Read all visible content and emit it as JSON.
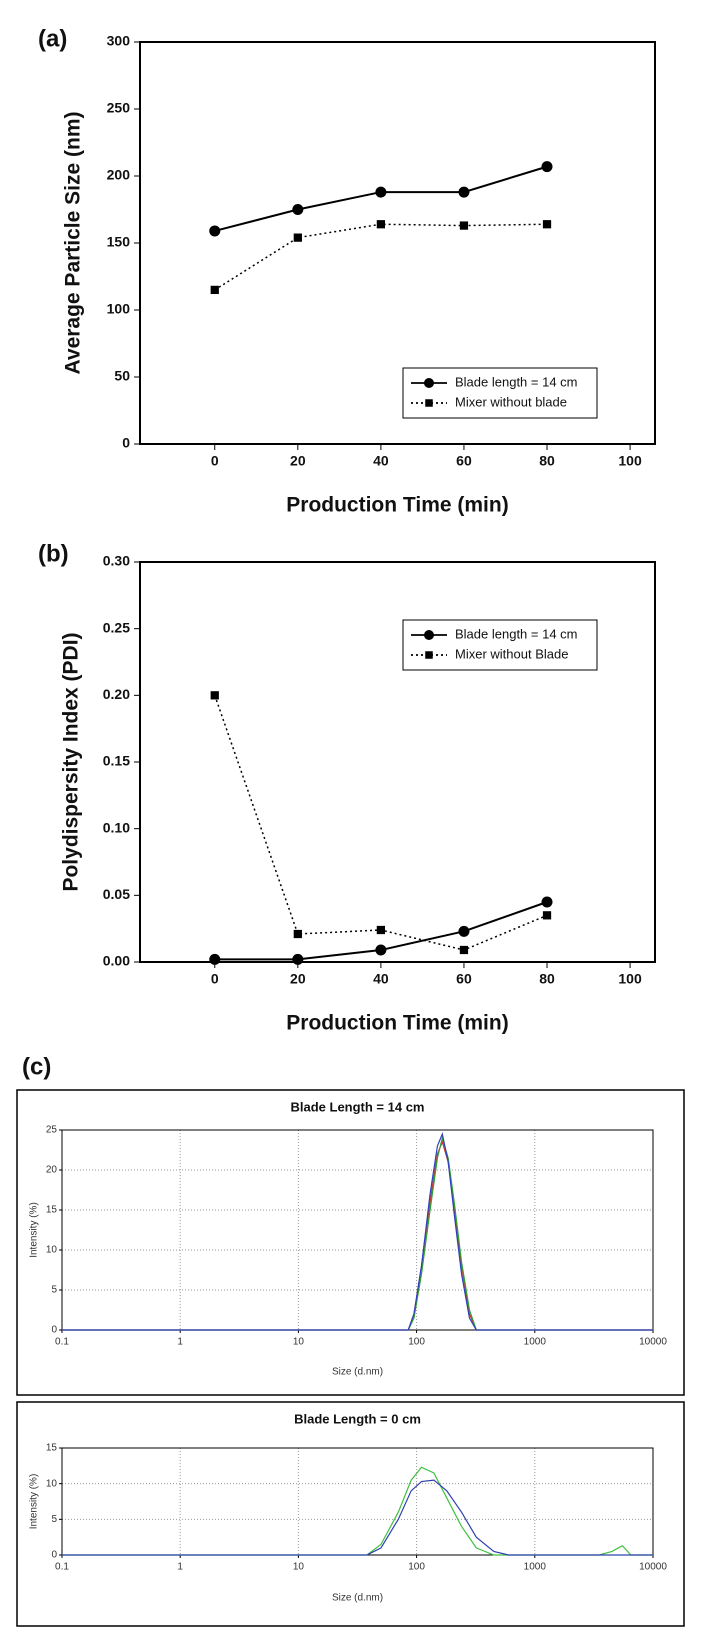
{
  "chart_data": [
    {
      "type": "line",
      "panel_label": "(a)",
      "xlabel": "Production Time (min)",
      "ylabel": "Average Particle Size (nm)",
      "x": [
        0,
        20,
        40,
        60,
        80
      ],
      "xlim": [
        -18,
        106
      ],
      "ylim": [
        0,
        300
      ],
      "xticks": [
        0,
        20,
        40,
        60,
        80,
        100
      ],
      "yticks": [
        0,
        50,
        100,
        150,
        200,
        250,
        300
      ],
      "grid": false,
      "legend": "lower right",
      "series": [
        {
          "name": "Blade length = 14 cm",
          "color": "#000000",
          "marker": "circle",
          "linestyle": "solid",
          "values": [
            159,
            175,
            188,
            188,
            207
          ]
        },
        {
          "name": "Mixer without blade",
          "color": "#000000",
          "marker": "square",
          "linestyle": "dotted",
          "values": [
            115,
            154,
            164,
            163,
            164
          ]
        }
      ]
    },
    {
      "type": "line",
      "panel_label": "(b)",
      "xlabel": "Production Time (min)",
      "ylabel": "Polydispersity Index (PDI)",
      "x": [
        0,
        20,
        40,
        60,
        80
      ],
      "xlim": [
        -18,
        106
      ],
      "ylim": [
        0,
        0.3
      ],
      "xticks": [
        0,
        20,
        40,
        60,
        80,
        100
      ],
      "yticks": [
        {
          "value": 0,
          "label": "0.00"
        },
        {
          "value": 0.05,
          "label": "0.05"
        },
        {
          "value": 0.1,
          "label": "0.10"
        },
        {
          "value": 0.15,
          "label": "0.15"
        },
        {
          "value": 0.2,
          "label": "0.20"
        },
        {
          "value": 0.25,
          "label": "0.25"
        },
        {
          "value": 0.3,
          "label": "0.30"
        }
      ],
      "grid": false,
      "legend": "upper right",
      "series": [
        {
          "name": "Blade length = 14 cm",
          "color": "#000000",
          "marker": "circle",
          "linestyle": "solid",
          "values": [
            0.002,
            0.002,
            0.009,
            0.023,
            0.045
          ]
        },
        {
          "name": "Mixer without Blade",
          "color": "#000000",
          "marker": "square",
          "linestyle": "dotted",
          "values": [
            0.2,
            0.021,
            0.024,
            0.009,
            0.035
          ]
        }
      ]
    },
    {
      "type": "line",
      "panel_label": "(c)",
      "title": "Blade Length = 14 cm",
      "xlabel": "Size (d.nm)",
      "ylabel": "Intensity (%)",
      "xscale": "log",
      "xlim": [
        0.1,
        10000
      ],
      "ylim": [
        0,
        25
      ],
      "xticks": [
        0.1,
        1,
        10,
        100,
        1000,
        10000
      ],
      "yticks": [
        0,
        5,
        10,
        15,
        20,
        25
      ],
      "grid": true,
      "series": [
        {
          "color": "#d03030",
          "x": [
            0.1,
            85,
            95,
            110,
            130,
            150,
            165,
            185,
            210,
            240,
            280,
            320,
            10000
          ],
          "values": [
            0,
            0,
            2,
            8,
            16,
            22,
            23.5,
            21,
            15,
            8,
            2,
            0,
            0
          ]
        },
        {
          "color": "#30a030",
          "x": [
            0.1,
            85,
            95,
            110,
            130,
            150,
            165,
            185,
            210,
            240,
            280,
            320,
            10000
          ],
          "values": [
            0,
            0,
            1.5,
            7,
            15,
            21.5,
            24,
            21.5,
            15.5,
            8.5,
            2.5,
            0,
            0
          ]
        },
        {
          "color": "#3040c0",
          "x": [
            0.1,
            85,
            95,
            110,
            130,
            150,
            165,
            185,
            210,
            240,
            280,
            320,
            10000
          ],
          "values": [
            0,
            0,
            2,
            8,
            17,
            23,
            24.5,
            21,
            14,
            7,
            1.5,
            0,
            0
          ]
        }
      ]
    },
    {
      "type": "line",
      "title": "Blade Length = 0 cm",
      "xlabel": "Size (d.nm)",
      "ylabel": "Intensity (%)",
      "xscale": "log",
      "xlim": [
        0.1,
        10000
      ],
      "ylim": [
        0,
        15
      ],
      "xticks": [
        0.1,
        1,
        10,
        100,
        1000,
        10000
      ],
      "yticks": [
        0,
        5,
        10,
        15
      ],
      "grid": true,
      "series": [
        {
          "color": "#40c040",
          "x": [
            0.1,
            38,
            50,
            70,
            90,
            110,
            140,
            180,
            240,
            320,
            450,
            600,
            3500,
            4500,
            5500,
            6500,
            10000
          ],
          "values": [
            0,
            0,
            1.5,
            6,
            10.5,
            12.3,
            11.5,
            8,
            4,
            1,
            0,
            0,
            0,
            0.5,
            1.3,
            0,
            0
          ]
        },
        {
          "color": "#3040b0",
          "x": [
            0.1,
            38,
            50,
            70,
            90,
            110,
            140,
            180,
            240,
            320,
            450,
            600,
            3500,
            4500,
            5500,
            6500,
            10000
          ],
          "values": [
            0,
            0,
            1,
            5,
            9,
            10.3,
            10.5,
            9,
            6,
            2.5,
            0.5,
            0,
            0,
            0,
            0,
            0,
            0
          ]
        }
      ]
    }
  ]
}
